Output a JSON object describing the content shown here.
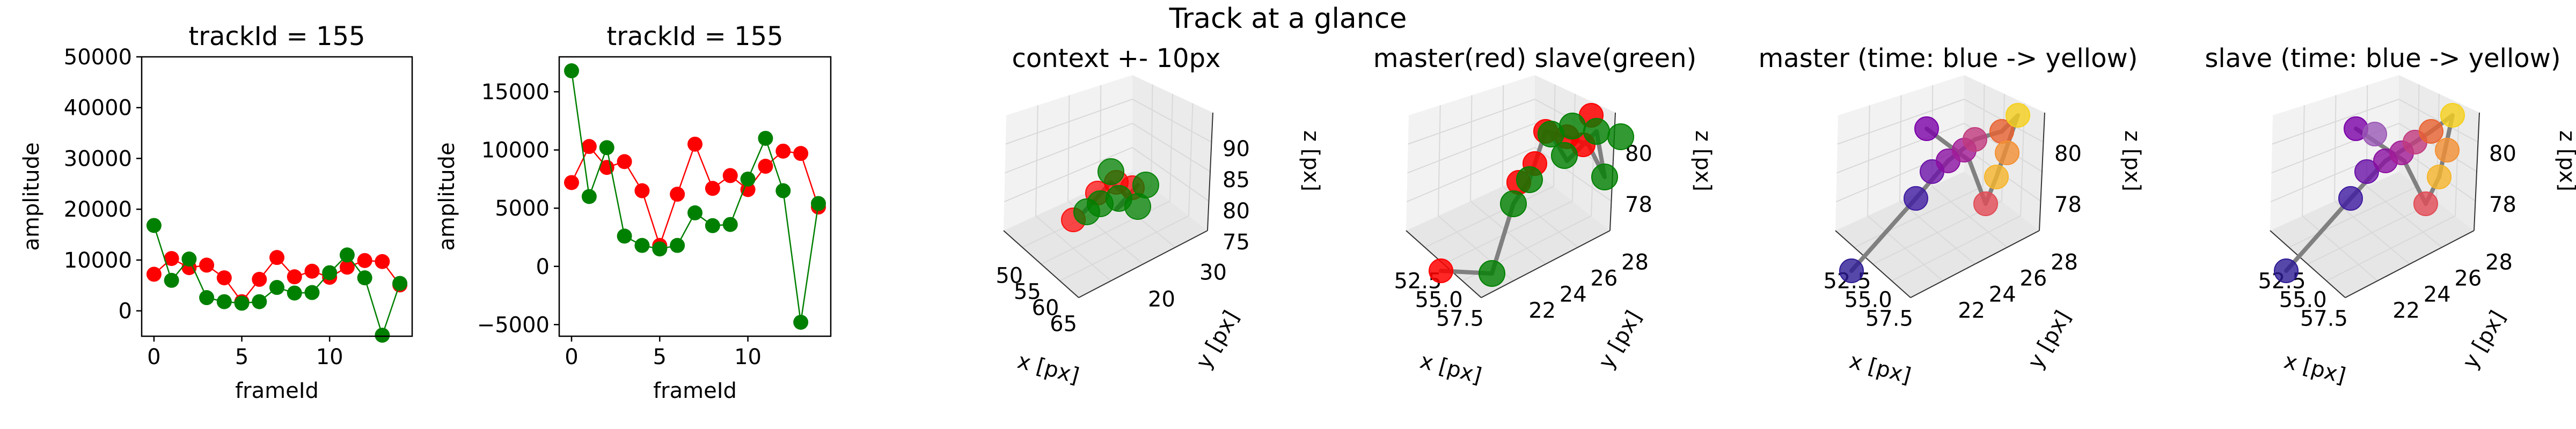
{
  "figure": {
    "suptitle": "Track at a glance"
  },
  "colors": {
    "master": "#ff0000",
    "slave": "#008000",
    "trace": "#808080",
    "pane": "#f2f2f2",
    "grid": "#d9d9d9"
  },
  "chart_data": [
    {
      "type": "line",
      "title": "trackId = 155",
      "xlabel": "frameId",
      "ylabel": "amplitude",
      "xlim": [
        -0.7,
        14.7
      ],
      "ylim": [
        -5000,
        50000
      ],
      "x_ticks": [
        0,
        5,
        10
      ],
      "y_ticks": [
        0,
        10000,
        20000,
        30000,
        40000,
        50000
      ],
      "x": [
        0,
        1,
        2,
        3,
        4,
        5,
        6,
        7,
        8,
        9,
        10,
        11,
        12,
        13,
        14
      ],
      "series": [
        {
          "color": "#ff0000",
          "values": [
            7200,
            10300,
            8500,
            9000,
            6500,
            1800,
            6200,
            10500,
            6700,
            7800,
            6600,
            8600,
            9900,
            9700,
            5100
          ]
        },
        {
          "color": "#008000",
          "values": [
            16800,
            6000,
            10200,
            2600,
            1800,
            1500,
            1800,
            4600,
            3500,
            3600,
            7500,
            11000,
            6500,
            -4800,
            5400
          ]
        }
      ]
    },
    {
      "type": "line",
      "title": "trackId = 155",
      "xlabel": "frameId",
      "ylabel": "amplitude",
      "xlim": [
        -0.7,
        14.7
      ],
      "ylim": [
        -6000,
        18000
      ],
      "x_ticks": [
        0,
        5,
        10
      ],
      "y_ticks": [
        -5000,
        0,
        5000,
        10000,
        15000
      ],
      "x": [
        0,
        1,
        2,
        3,
        4,
        5,
        6,
        7,
        8,
        9,
        10,
        11,
        12,
        13,
        14
      ],
      "series": [
        {
          "color": "#ff0000",
          "values": [
            7200,
            10300,
            8500,
            9000,
            6500,
            1800,
            6200,
            10500,
            6700,
            7800,
            6600,
            8600,
            9900,
            9700,
            5100
          ]
        },
        {
          "color": "#008000",
          "values": [
            16800,
            6000,
            10200,
            2600,
            1800,
            1500,
            1800,
            4600,
            3500,
            3600,
            7500,
            11000,
            6500,
            -4800,
            5400
          ]
        }
      ]
    },
    {
      "type": "scatter3d",
      "title": "context +- 10px",
      "xlabel": "x [px]",
      "ylabel": "y [px]",
      "zlabel": "z [px]",
      "x_ticks": [
        "50",
        "55",
        "60",
        "65"
      ],
      "y_ticks": [
        "20",
        "30"
      ],
      "z_ticks": [
        "75",
        "80",
        "85",
        "90"
      ]
    },
    {
      "type": "scatter3d",
      "title": "master(red) slave(green)",
      "xlabel": "x [px]",
      "ylabel": "y [px]",
      "zlabel": "z [px]",
      "x_ticks": [
        "52.5",
        "55.0",
        "57.5"
      ],
      "y_ticks": [
        "22",
        "24",
        "26",
        "28"
      ],
      "z_ticks": [
        "78",
        "80"
      ]
    },
    {
      "type": "scatter3d",
      "title": "master (time: blue -> yellow)",
      "xlabel": "x [px]",
      "ylabel": "y [px]",
      "zlabel": "z [px]",
      "x_ticks": [
        "52.5",
        "55.0",
        "57.5"
      ],
      "y_ticks": [
        "22",
        "24",
        "26",
        "28"
      ],
      "z_ticks": [
        "78",
        "80"
      ]
    },
    {
      "type": "scatter3d",
      "title": "slave (time: blue -> yellow)",
      "xlabel": "x [px]",
      "ylabel": "y [px]",
      "zlabel": "z [px]",
      "x_ticks": [
        "52.5",
        "55.0",
        "57.5"
      ],
      "y_ticks": [
        "22",
        "24",
        "26",
        "28"
      ],
      "z_ticks": [
        "78",
        "80"
      ]
    }
  ]
}
